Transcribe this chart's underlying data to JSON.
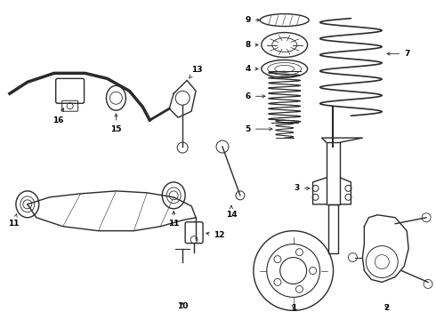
{
  "background_color": "#ffffff",
  "line_color": "#2a2a2a",
  "label_color": "#000000",
  "label_fontsize": 6.5,
  "fig_width": 4.9,
  "fig_height": 3.6,
  "dpi": 100
}
